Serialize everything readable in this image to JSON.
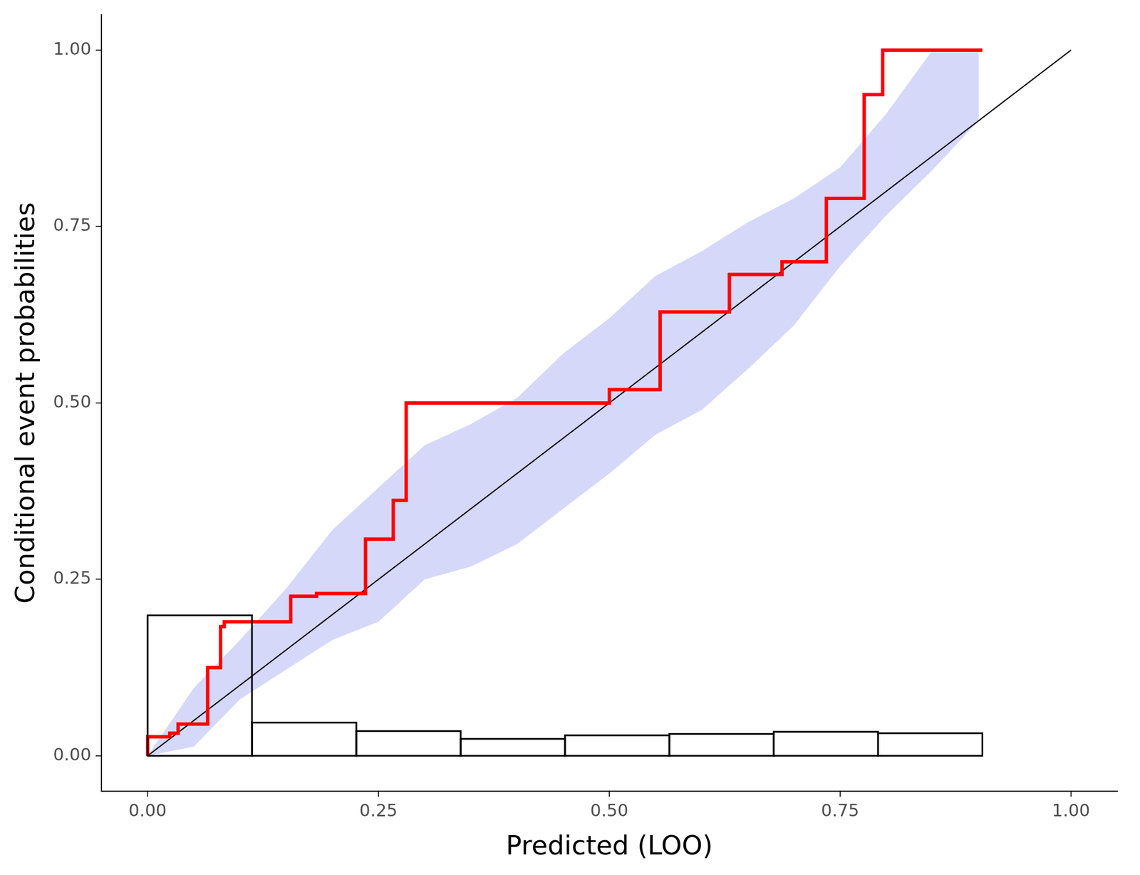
{
  "chart_data": {
    "type": "line",
    "x_label": "Predicted (LOO)",
    "y_label": "Conditional event probabilities",
    "xlim": [
      -0.05,
      1.05
    ],
    "ylim": [
      -0.05,
      1.05
    ],
    "xticks": [
      {
        "value": 0,
        "label": "0.00"
      },
      {
        "value": 0.25,
        "label": "0.25"
      },
      {
        "value": 0.5,
        "label": "0.50"
      },
      {
        "value": 0.75,
        "label": "0.75"
      },
      {
        "value": 1,
        "label": "1.00"
      }
    ],
    "yticks": [
      {
        "value": 0,
        "label": "0.00"
      },
      {
        "value": 0.25,
        "label": "0.25"
      },
      {
        "value": 0.5,
        "label": "0.50"
      },
      {
        "value": 0.75,
        "label": "0.75"
      },
      {
        "value": 1,
        "label": "1.00"
      }
    ],
    "grid": false,
    "band": {
      "color": "#d6d8fa",
      "x": [
        0,
        0.05,
        0.1,
        0.15,
        0.2,
        0.25,
        0.3,
        0.35,
        0.4,
        0.45,
        0.5,
        0.55,
        0.6,
        0.65,
        0.7,
        0.75,
        0.8,
        0.85,
        0.9
      ],
      "lower": [
        0,
        0.013,
        0.08,
        0.122,
        0.164,
        0.19,
        0.25,
        0.268,
        0.3,
        0.35,
        0.4,
        0.455,
        0.49,
        0.548,
        0.61,
        0.694,
        0.766,
        0.83,
        0.9
      ],
      "upper": [
        0,
        0.096,
        0.164,
        0.237,
        0.32,
        0.38,
        0.44,
        0.47,
        0.507,
        0.57,
        0.62,
        0.68,
        0.715,
        0.756,
        0.79,
        0.834,
        0.91,
        1.0,
        1.0
      ]
    },
    "series": [
      {
        "type": "line",
        "color": "#000000",
        "x": [
          0,
          1
        ],
        "values": [
          0,
          1
        ]
      },
      {
        "type": "line",
        "line_style": "stepped",
        "color": "#ff0000",
        "x": [
          0,
          0.024,
          0.033,
          0.065,
          0.079,
          0.083,
          0.155,
          0.183,
          0.236,
          0.266,
          0.28,
          0.5,
          0.555,
          0.63,
          0.687,
          0.735,
          0.776,
          0.796,
          0.888,
          0.904
        ],
        "values": [
          0,
          0.027,
          0.032,
          0.045,
          0.125,
          0.183,
          0.19,
          0.226,
          0.23,
          0.307,
          0.362,
          0.5,
          0.519,
          0.629,
          0.682,
          0.7,
          0.79,
          0.937,
          1.0,
          1.0
        ]
      }
    ],
    "histogram": {
      "color": "#000000",
      "bins": [
        0,
        0.113,
        0.226,
        0.339,
        0.452,
        0.565,
        0.678,
        0.791,
        0.904
      ],
      "counts": [
        0.199,
        0.047,
        0.035,
        0.024,
        0.029,
        0.031,
        0.034,
        0.032
      ]
    }
  }
}
